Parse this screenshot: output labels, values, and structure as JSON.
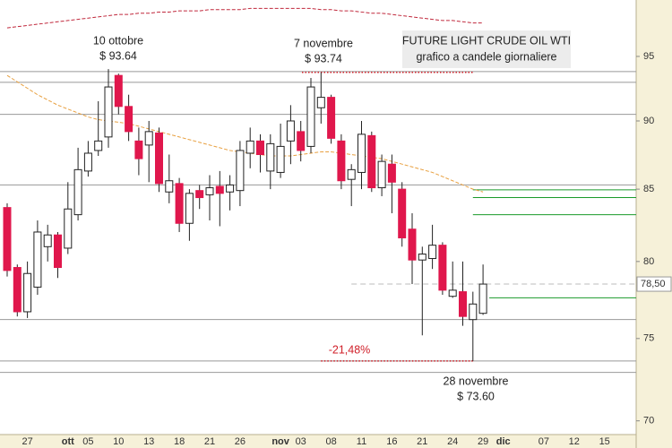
{
  "chart_data": {
    "type": "candlestick",
    "title": "FUTURE LIGHT CRUDE OIL WTI",
    "subtitle": "grafico a candele giornaliere",
    "categories": [
      null,
      null,
      "27",
      null,
      null,
      null,
      "ott",
      null,
      "05",
      null,
      null,
      "10",
      null,
      null,
      "13",
      null,
      null,
      "18",
      null,
      null,
      "21",
      null,
      null,
      "26",
      null,
      null,
      null,
      "nov",
      null,
      "03",
      null,
      null,
      "08",
      null,
      null,
      "11",
      null,
      null,
      "16",
      null,
      null,
      "21",
      null,
      null,
      "24",
      null,
      null,
      "29",
      null,
      "dic",
      null,
      null,
      null,
      "07",
      null,
      null,
      "12",
      null,
      null,
      "15",
      null,
      null
    ],
    "open": [
      83.7,
      79.6,
      76.7,
      78.3,
      81.0,
      81.8,
      80.9,
      83.2,
      86.3,
      87.8,
      88.8,
      93.5,
      91.1,
      88.5,
      88.2,
      89.1,
      84.8,
      85.4,
      82.6,
      84.9,
      84.6,
      85.2,
      84.8,
      84.9,
      87.6,
      88.5,
      86.3,
      86.2,
      88.5,
      89.2,
      88.1,
      91.0,
      91.8,
      88.5,
      85.7,
      86.2,
      88.9,
      85.1,
      86.8,
      85.0,
      82.2,
      80.1,
      80.2,
      81.1,
      77.7,
      78.0,
      76.2,
      76.6,
      null,
      null,
      null,
      null,
      null,
      null,
      null,
      null,
      null,
      null,
      null,
      null,
      null,
      null
    ],
    "high": [
      84.0,
      79.8,
      80.0,
      82.8,
      82.5,
      82.0,
      85.5,
      88.0,
      88.5,
      91.5,
      94.0,
      93.64,
      92.0,
      89.5,
      90.0,
      89.5,
      87.5,
      85.8,
      85.0,
      85.3,
      86.0,
      86.3,
      86.0,
      88.5,
      89.5,
      89.0,
      89.0,
      89.8,
      91.2,
      90.0,
      93.3,
      93.74,
      92.0,
      89.0,
      86.8,
      90.0,
      89.2,
      87.5,
      87.5,
      85.5,
      83.3,
      81.0,
      82.5,
      81.3,
      80.0,
      80.0,
      78.0,
      79.8,
      null,
      null,
      null,
      null,
      null,
      null,
      null,
      null,
      null,
      null,
      null,
      null,
      null,
      null
    ],
    "low": [
      79.0,
      76.4,
      76.3,
      77.8,
      80.0,
      78.9,
      80.5,
      82.8,
      85.9,
      87.4,
      88.0,
      90.5,
      88.5,
      86.0,
      85.5,
      84.8,
      84.0,
      82.0,
      81.4,
      83.6,
      82.8,
      82.4,
      83.5,
      83.8,
      86.5,
      86.2,
      85.0,
      85.8,
      86.8,
      87.0,
      87.6,
      89.8,
      88.3,
      85.0,
      83.8,
      85.0,
      84.8,
      84.5,
      83.3,
      81.0,
      78.5,
      75.2,
      79.5,
      77.8,
      77.6,
      75.8,
      73.6,
      76.5,
      null,
      null,
      null,
      null,
      null,
      null,
      null,
      null,
      null,
      null,
      null,
      null,
      null,
      null
    ],
    "close": [
      79.4,
      76.7,
      79.2,
      82.0,
      81.8,
      79.6,
      83.6,
      86.4,
      87.6,
      88.5,
      92.6,
      91.1,
      89.2,
      87.2,
      89.2,
      85.4,
      85.6,
      82.6,
      84.7,
      84.4,
      85.1,
      84.7,
      85.3,
      87.8,
      88.5,
      87.5,
      88.3,
      88.1,
      90.0,
      87.8,
      92.6,
      91.8,
      88.7,
      85.6,
      86.4,
      89.0,
      85.1,
      87.0,
      85.5,
      81.6,
      80.1,
      80.5,
      81.1,
      78.1,
      78.1,
      76.4,
      77.2,
      78.5,
      null,
      null,
      null,
      null,
      null,
      null,
      null,
      null,
      null,
      null,
      null,
      null,
      null,
      null
    ],
    "up_color": "#ffffff",
    "down_color": "#e0174c",
    "moving_averages": [
      {
        "color": "#e8a040",
        "values": [
          93.5,
          93.0,
          92.5,
          92.0,
          91.6,
          91.2,
          90.9,
          90.6,
          90.3,
          90.1,
          90.0,
          89.9,
          89.8,
          89.6,
          89.4,
          89.2,
          89.0,
          88.8,
          88.6,
          88.4,
          88.2,
          88.0,
          87.8,
          87.7,
          87.6,
          87.5,
          87.4,
          87.4,
          87.4,
          87.5,
          87.6,
          87.7,
          87.7,
          87.6,
          87.5,
          87.4,
          87.3,
          87.2,
          87.0,
          86.8,
          86.6,
          86.4,
          86.2,
          85.9,
          85.6,
          85.3,
          85.0,
          84.8,
          null,
          null,
          null,
          null,
          null,
          null,
          null,
          null,
          null,
          null,
          null,
          null,
          null,
          null
        ]
      },
      {
        "color": "#c0283c",
        "values": [
          97.3,
          97.4,
          97.5,
          97.6,
          97.7,
          97.8,
          97.9,
          98.0,
          98.1,
          98.2,
          98.3,
          98.4,
          98.4,
          98.5,
          98.5,
          98.6,
          98.6,
          98.7,
          98.7,
          98.7,
          98.8,
          98.8,
          98.8,
          98.8,
          98.9,
          98.9,
          98.9,
          98.9,
          98.9,
          98.9,
          98.9,
          98.8,
          98.8,
          98.7,
          98.7,
          98.6,
          98.5,
          98.5,
          98.4,
          98.3,
          98.2,
          98.1,
          98.0,
          97.9,
          97.9,
          97.8,
          97.7,
          97.7,
          null,
          null,
          null,
          null,
          null,
          null,
          null,
          null,
          null,
          null,
          null,
          null,
          null,
          null
        ]
      }
    ],
    "levels": [
      {
        "value": 93.8,
        "color": "#999999"
      },
      {
        "value": 92.96,
        "color": "#999999"
      },
      {
        "value": 90.5,
        "color": "#999999"
      },
      {
        "value": 85.3,
        "color": "#999999"
      },
      {
        "value": 76.2,
        "color": "#999999"
      },
      {
        "value": 73.6,
        "color": "#999999"
      },
      {
        "value": 72.9,
        "color": "#999999"
      },
      {
        "value": 84.95,
        "color": "#1a9a2a"
      },
      {
        "value": 84.4,
        "color": "#1a9a2a"
      },
      {
        "value": 83.2,
        "color": "#1a9a2a"
      },
      {
        "value": 77.6,
        "color": "#1a9a2a"
      }
    ],
    "ylim": [
      69.2,
      99.6
    ],
    "yticks": [
      70,
      75,
      80,
      85,
      90,
      95
    ],
    "ylog": true,
    "last_price": {
      "value": 78.5,
      "label": "78,50"
    },
    "annotations": [
      {
        "date": "10 ottobre",
        "price": "$ 93.64"
      },
      {
        "date": "7 novembre",
        "price": "$ 93.74"
      },
      {
        "date": "28 novembre",
        "price": "$ 73.60"
      },
      {
        "change": "-21,48%"
      }
    ]
  }
}
